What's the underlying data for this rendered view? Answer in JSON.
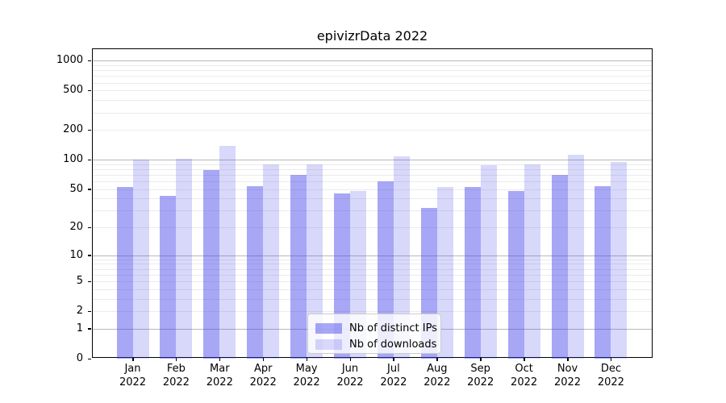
{
  "title": "epivizrData 2022",
  "chart_data": {
    "type": "bar",
    "title": "epivizrData 2022",
    "categories": [
      "Jan",
      "Feb",
      "Mar",
      "Apr",
      "May",
      "Jun",
      "Jul",
      "Aug",
      "Sep",
      "Oct",
      "Nov",
      "Dec"
    ],
    "year_label": "2022",
    "series": [
      {
        "name": "Nb of distinct IPs",
        "color": "rgba(60,60,235,0.45)",
        "values": [
          53,
          43,
          79,
          54,
          70,
          45,
          60,
          32,
          53,
          48,
          70,
          54
        ]
      },
      {
        "name": "Nb of downloads",
        "color": "rgba(60,60,235,0.2)",
        "values": [
          101,
          103,
          139,
          89,
          89,
          48,
          109,
          53,
          88,
          90,
          113,
          95
        ]
      }
    ],
    "y_ticks": [
      0,
      1,
      2,
      5,
      10,
      20,
      50,
      100,
      200,
      500,
      1000
    ],
    "scale": "log10(1+y)",
    "ylim": [
      0,
      1280
    ],
    "grid": true,
    "legend_position": "lower-center"
  },
  "colors": {
    "bar_ips": "rgba(60,60,235,0.45)",
    "bar_downloads": "rgba(60,60,235,0.2)",
    "major_grid": "#b8b8b8",
    "minor_grid": "#ebebeb",
    "spine": "#000000"
  }
}
